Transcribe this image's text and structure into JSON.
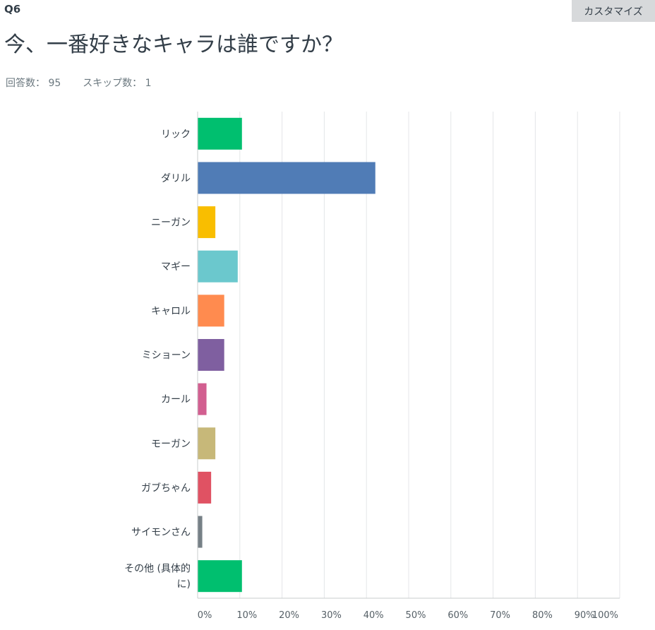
{
  "question": {
    "number": "Q6",
    "title": "今、一番好きなキャラは誰ですか？"
  },
  "toolbar": {
    "customize_label": "カスタマイズ"
  },
  "stats": {
    "answered_label": "回答数：",
    "answered_value": "95",
    "skipped_label": "スキップ数：",
    "skipped_value": "1"
  },
  "chart_data": {
    "type": "bar",
    "orientation": "horizontal",
    "categories": [
      "リック",
      "ダリル",
      "ニーガン",
      "マギー",
      "キャロル",
      "ミショーン",
      "カール",
      "モーガン",
      "ガブちゃん",
      "サイモンさん",
      "その他 (具体的に)"
    ],
    "category_lines": [
      [
        "リック"
      ],
      [
        "ダリル"
      ],
      [
        "ニーガン"
      ],
      [
        "マギー"
      ],
      [
        "キャロル"
      ],
      [
        "ミショーン"
      ],
      [
        "カール"
      ],
      [
        "モーガン"
      ],
      [
        "ガブちゃん"
      ],
      [
        "サイモンさん"
      ],
      [
        "その他 (具体的",
        "に)"
      ]
    ],
    "values": [
      10.5,
      42.1,
      4.2,
      9.5,
      6.3,
      6.3,
      2.1,
      4.2,
      3.2,
      1.1,
      10.5
    ],
    "colors": [
      "#00bf6f",
      "#507cb6",
      "#f9be00",
      "#6bc8cd",
      "#ff8b4f",
      "#7f5fa0",
      "#d25f90",
      "#c7b879",
      "#e05263",
      "#768086",
      "#00bf6f"
    ],
    "xticks": [
      "0%",
      "10%",
      "20%",
      "30%",
      "40%",
      "50%",
      "60%",
      "70%",
      "80%",
      "90%",
      "100%"
    ],
    "xlim": [
      0,
      100
    ],
    "unit": "%",
    "grid": true,
    "legend": "none"
  }
}
